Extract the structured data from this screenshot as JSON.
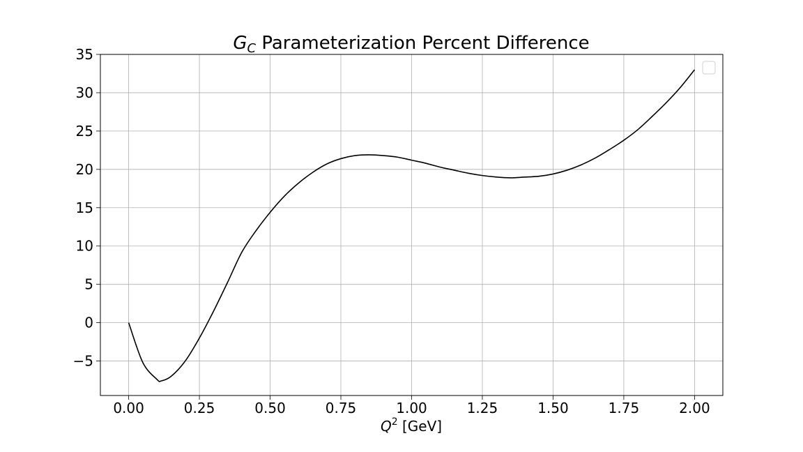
{
  "chart_data": {
    "type": "line",
    "title_main": "G",
    "title_sub": "C",
    "title_rest": " Parameterization Percent Difference",
    "xlabel_main": "Q",
    "xlabel_sup": "2",
    "xlabel_rest": " [GeV]",
    "ylabel": "",
    "xlim": [
      -0.1,
      2.1
    ],
    "ylim": [
      -9.5,
      35
    ],
    "xticks": [
      0.0,
      0.25,
      0.5,
      0.75,
      1.0,
      1.25,
      1.5,
      1.75,
      2.0
    ],
    "xtick_labels": [
      "0.00",
      "0.25",
      "0.50",
      "0.75",
      "1.00",
      "1.25",
      "1.50",
      "1.75",
      "2.00"
    ],
    "yticks": [
      -5,
      0,
      5,
      10,
      15,
      20,
      25,
      30,
      35
    ],
    "ytick_labels": [
      "−5",
      "0",
      "5",
      "10",
      "15",
      "20",
      "25",
      "30",
      "35"
    ],
    "grid": true,
    "legend": {
      "placement": "top-right",
      "entries": []
    },
    "series": [
      {
        "color": "#000000",
        "x": [
          0.0,
          0.05,
          0.1,
          0.115,
          0.15,
          0.2,
          0.25,
          0.3,
          0.35,
          0.4,
          0.45,
          0.5,
          0.55,
          0.6,
          0.65,
          0.7,
          0.75,
          0.8,
          0.85,
          0.9,
          0.95,
          1.0,
          1.05,
          1.1,
          1.15,
          1.2,
          1.25,
          1.3,
          1.35,
          1.4,
          1.45,
          1.5,
          1.55,
          1.6,
          1.65,
          1.7,
          1.75,
          1.8,
          1.85,
          1.9,
          1.95,
          2.0
        ],
        "y": [
          0.0,
          -5.2,
          -7.4,
          -7.6,
          -7.0,
          -5.0,
          -2.0,
          1.5,
          5.3,
          9.2,
          12.0,
          14.4,
          16.5,
          18.2,
          19.6,
          20.7,
          21.4,
          21.8,
          21.9,
          21.8,
          21.6,
          21.2,
          20.8,
          20.3,
          19.9,
          19.5,
          19.2,
          19.0,
          18.9,
          19.0,
          19.1,
          19.4,
          19.9,
          20.6,
          21.5,
          22.6,
          23.8,
          25.2,
          26.9,
          28.7,
          30.7,
          33.0
        ]
      }
    ]
  }
}
